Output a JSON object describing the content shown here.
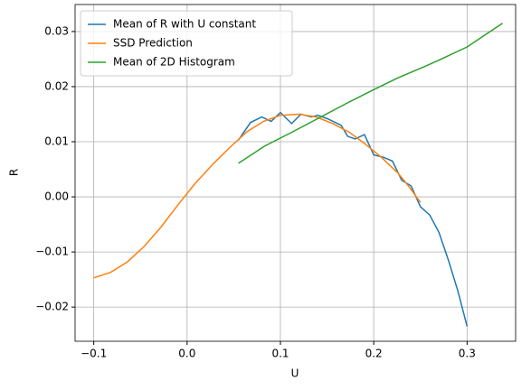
{
  "chart_data": {
    "type": "line",
    "xlabel": "U",
    "ylabel": "R",
    "xlim": [
      -0.12,
      0.352
    ],
    "ylim": [
      -0.0262,
      0.0349
    ],
    "xticks": [
      {
        "value": -0.1,
        "label": "−0.1"
      },
      {
        "value": 0,
        "label": "0.0"
      },
      0.1,
      0.2,
      0.3
    ],
    "yticks": [
      {
        "value": -0.02,
        "label": "−0.02"
      },
      {
        "value": -0.01,
        "label": "−0.01"
      },
      {
        "value": 0,
        "label": "0.00"
      },
      0.01,
      0.02,
      0.03
    ],
    "grid": true,
    "legend": "upper left",
    "series": [
      {
        "name": "Mean of R with U constant",
        "color": "#1f77b4",
        "x": [
          0.055,
          0.068,
          0.08,
          0.09,
          0.1,
          0.112,
          0.122,
          0.133,
          0.14,
          0.15,
          0.165,
          0.172,
          0.18,
          0.19,
          0.2,
          0.21,
          0.22,
          0.23,
          0.24,
          0.25,
          0.26,
          0.27,
          0.28,
          0.29,
          0.3
        ],
        "values": [
          0.0103,
          0.0135,
          0.0145,
          0.0137,
          0.0153,
          0.0133,
          0.015,
          0.0145,
          0.0148,
          0.0142,
          0.013,
          0.011,
          0.0105,
          0.0113,
          0.0076,
          0.0072,
          0.0065,
          0.003,
          0.002,
          -0.0018,
          -0.0033,
          -0.0065,
          -0.0115,
          -0.017,
          -0.0235
        ]
      },
      {
        "name": "SSD Prediction",
        "color": "#ff7f0e",
        "x": [
          -0.1,
          -0.082,
          -0.064,
          -0.046,
          -0.028,
          -0.01,
          0.008,
          0.028,
          0.046,
          0.064,
          0.082,
          0.1,
          0.12,
          0.138,
          0.156,
          0.174,
          0.19,
          0.208,
          0.226,
          0.238,
          0.25
        ],
        "values": [
          -0.0147,
          -0.0137,
          -0.0118,
          -0.009,
          -0.0055,
          -0.0015,
          0.0023,
          0.006,
          0.009,
          0.0118,
          0.0137,
          0.0148,
          0.015,
          0.0145,
          0.0133,
          0.0117,
          0.0097,
          0.0072,
          0.0043,
          0.0018,
          -0.001
        ]
      },
      {
        "name": "Mean of 2D Histogram",
        "color": "#2ca02c",
        "x": [
          0.055,
          0.083,
          0.112,
          0.14,
          0.169,
          0.197,
          0.226,
          0.254,
          0.271,
          0.3,
          0.338
        ],
        "values": [
          0.0061,
          0.0092,
          0.0117,
          0.0142,
          0.0168,
          0.0192,
          0.0216,
          0.0236,
          0.0249,
          0.0272,
          0.0315
        ]
      }
    ]
  }
}
